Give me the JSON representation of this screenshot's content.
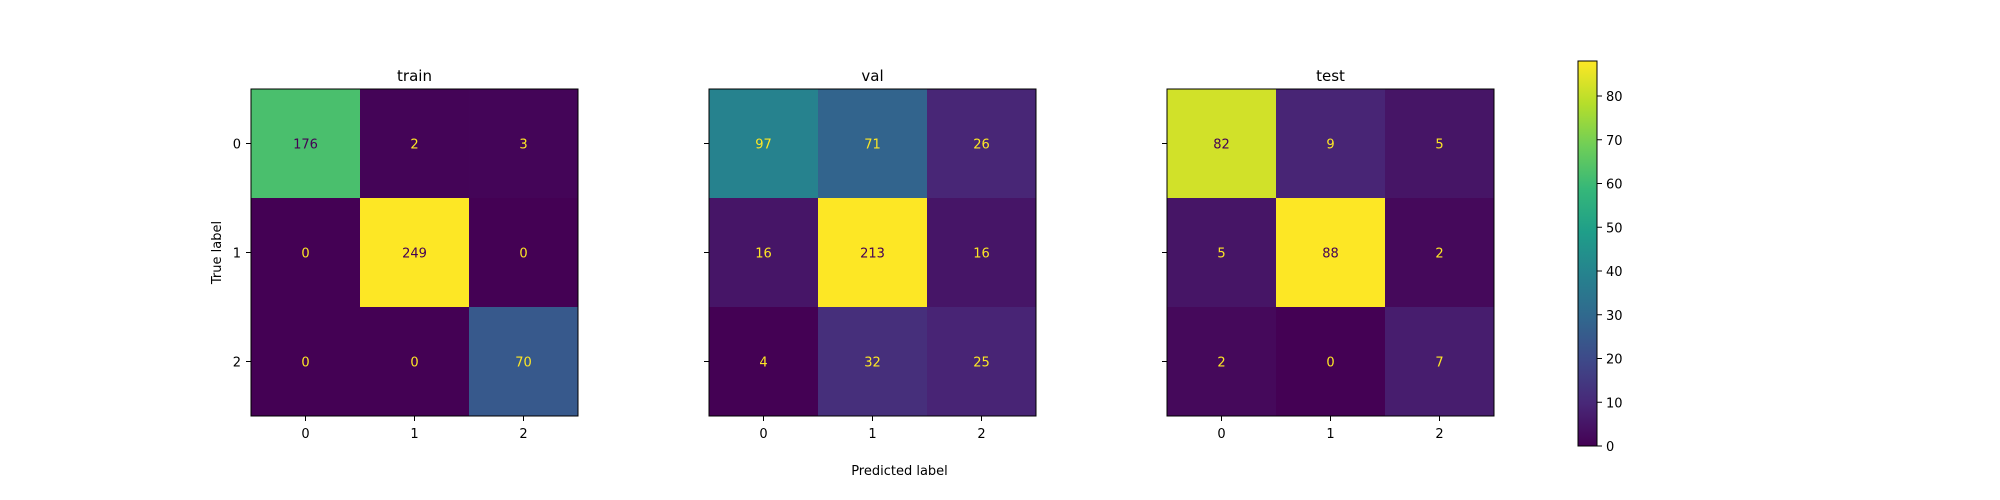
{
  "chart_data": [
    {
      "type": "heatmap",
      "title": "train",
      "xlabel": "",
      "ylabel": "True label",
      "x_ticks": [
        "0",
        "1",
        "2"
      ],
      "y_ticks": [
        "0",
        "1",
        "2"
      ],
      "matrix": [
        [
          176,
          2,
          3
        ],
        [
          0,
          249,
          0
        ],
        [
          0,
          0,
          70
        ]
      ]
    },
    {
      "type": "heatmap",
      "title": "val",
      "xlabel": "Predicted label",
      "ylabel": "",
      "x_ticks": [
        "0",
        "1",
        "2"
      ],
      "y_ticks": [
        "0",
        "1",
        "2"
      ],
      "show_y_tick_labels": false,
      "matrix": [
        [
          97,
          71,
          26
        ],
        [
          16,
          213,
          16
        ],
        [
          4,
          32,
          25
        ]
      ]
    },
    {
      "type": "heatmap",
      "title": "test",
      "xlabel": "",
      "ylabel": "",
      "x_ticks": [
        "0",
        "1",
        "2"
      ],
      "y_ticks": [
        "0",
        "1",
        "2"
      ],
      "show_y_tick_labels": false,
      "matrix": [
        [
          82,
          9,
          5
        ],
        [
          5,
          88,
          2
        ],
        [
          2,
          0,
          7
        ]
      ]
    }
  ],
  "colorbar": {
    "colormap": "viridis",
    "range": [
      0,
      88
    ],
    "ticks": [
      0,
      10,
      20,
      30,
      40,
      50,
      60,
      70,
      80
    ]
  },
  "colors": {
    "text_on_dark": "#fde725",
    "text_on_light": "#440154"
  }
}
